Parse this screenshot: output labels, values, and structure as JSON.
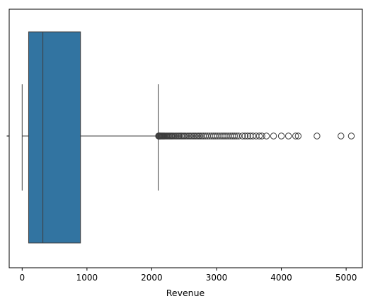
{
  "chart_data": {
    "type": "box",
    "orientation": "horizontal",
    "xlabel": "Revenue",
    "ylabel": "",
    "title": "",
    "xlim": [
      -200,
      5250
    ],
    "xticks": [
      0,
      1000,
      2000,
      3000,
      4000,
      5000
    ],
    "xtick_labels": [
      "0",
      "1000",
      "2000",
      "3000",
      "4000",
      "5000"
    ],
    "grid": false,
    "box": {
      "whisker_low": 0,
      "q1": 100,
      "median": 320,
      "q3": 900,
      "whisker_high": 2100,
      "fill_color": "#3274a1",
      "line_color": "#3d3d3d"
    },
    "outliers": [
      2105,
      2110,
      2115,
      2120,
      2125,
      2130,
      2140,
      2150,
      2160,
      2170,
      2180,
      2190,
      2200,
      2215,
      2230,
      2245,
      2260,
      2275,
      2290,
      2305,
      2320,
      2340,
      2360,
      2380,
      2400,
      2420,
      2440,
      2460,
      2480,
      2500,
      2525,
      2550,
      2575,
      2600,
      2625,
      2650,
      2675,
      2700,
      2725,
      2750,
      2775,
      2800,
      2830,
      2860,
      2890,
      2920,
      2950,
      2980,
      3010,
      3040,
      3070,
      3100,
      3130,
      3160,
      3190,
      3220,
      3250,
      3280,
      3310,
      3340,
      3400,
      3440,
      3480,
      3520,
      3560,
      3610,
      3660,
      3700,
      3770,
      3880,
      4000,
      4110,
      4220,
      4260,
      4550,
      4920,
      5080
    ]
  }
}
